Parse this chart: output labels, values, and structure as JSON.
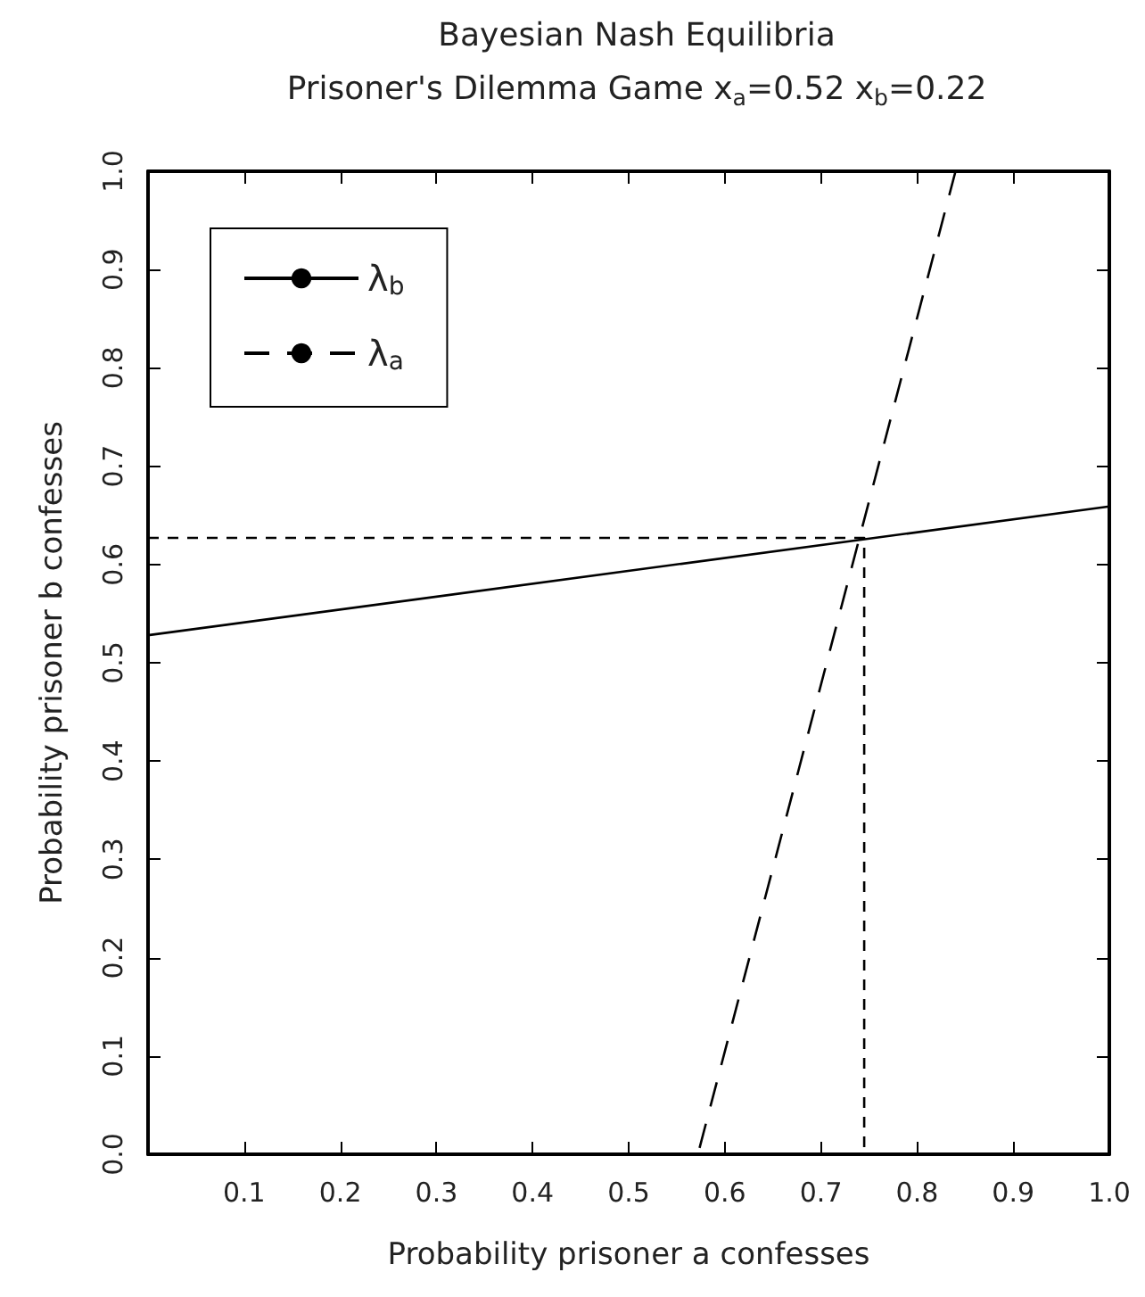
{
  "chart_data": {
    "type": "line",
    "title": "Bayesian Nash Equilibria",
    "subtitle": "Prisoner's Dilemma Game x$_{a}$=0.52 x$_{b}$=0.22",
    "xlabel": "Probability prisoner a confesses",
    "ylabel": "Probability prisoner b confesses",
    "series": [
      {
        "name": "λ$_{b}$",
        "color": "#000000",
        "line_style": "solid",
        "x": [
          0,
          1
        ],
        "values": [
          0.528,
          0.659
        ]
      },
      {
        "name": "λ$_{a}$",
        "color": "#000000",
        "line_style": "dashed",
        "x": [
          0,
          0.572,
          0.84,
          1
        ],
        "values": [
          0,
          0,
          1,
          1
        ]
      },
      {
        "color": "#000000",
        "line_style": "dotted",
        "x": [
          0,
          0.745,
          0.745
        ],
        "values": [
          0.627,
          0.627,
          0
        ]
      }
    ],
    "xlim": [
      0,
      1
    ],
    "ylim": [
      0,
      1
    ],
    "xticks": [
      0.1,
      0.2,
      0.3,
      0.4,
      0.5,
      0.6,
      0.7,
      0.8,
      0.9,
      {
        "value": 1,
        "label": "1.0"
      }
    ],
    "yticks": [
      {
        "value": 0,
        "label": "0.0"
      },
      0.1,
      0.2,
      0.3,
      0.4,
      0.5,
      0.6,
      0.7,
      0.8,
      0.9,
      {
        "value": 1,
        "label": "1.0"
      }
    ],
    "grid": false,
    "legend": "top left",
    "marker": "none"
  }
}
